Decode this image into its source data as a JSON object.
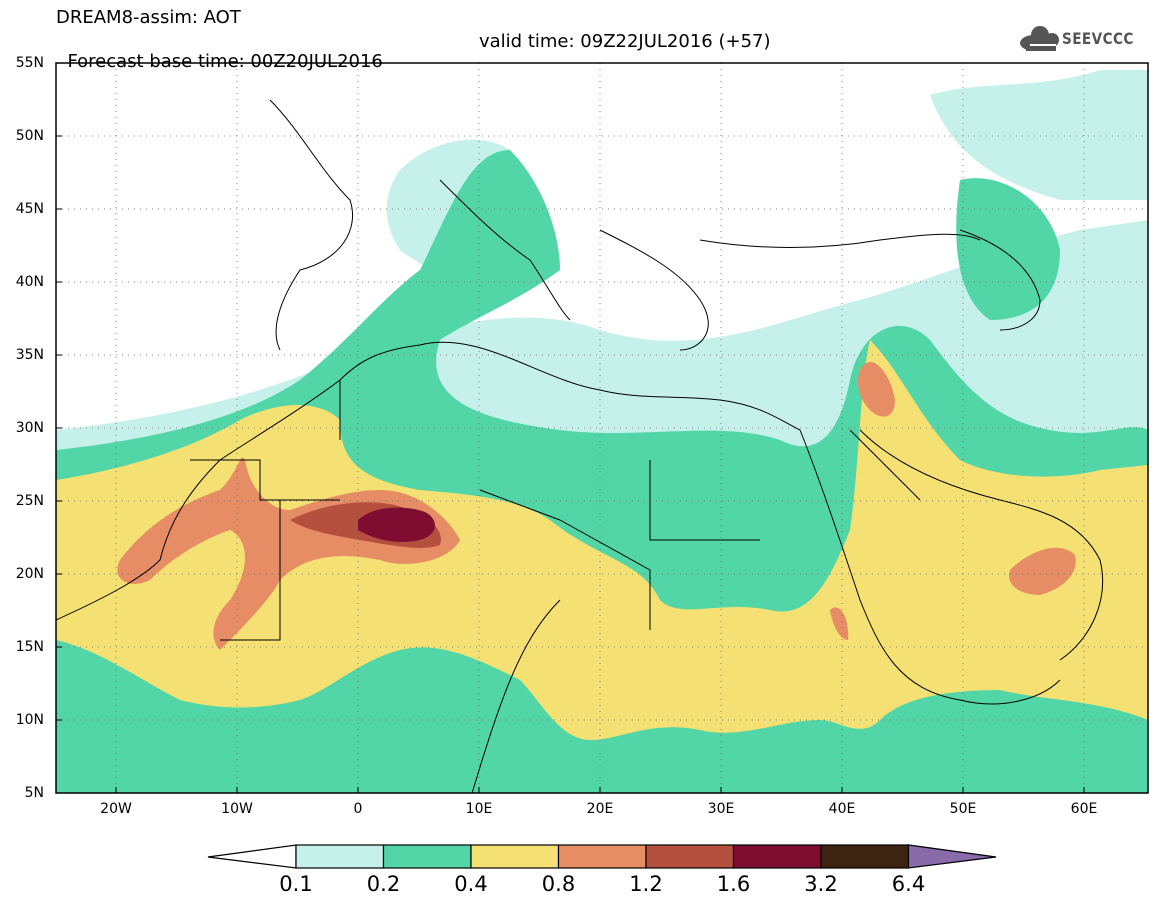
{
  "header": {
    "title_line1": "DREAM8-assim: AOT",
    "title_line2": "Forecast base time: 00Z20JUL2016",
    "valid_time": "valid time: 09Z22JUL2016 (+57)"
  },
  "logo": {
    "text": "SEEVCCC",
    "icon": "cloud-icon"
  },
  "map": {
    "lon_range": [
      -25,
      65
    ],
    "lat_range": [
      5,
      55
    ],
    "lat_labels": [
      "55N",
      "50N",
      "45N",
      "40N",
      "35N",
      "30N",
      "25N",
      "20N",
      "15N",
      "10N",
      "5N"
    ],
    "lon_labels": [
      "20W",
      "10W",
      "0",
      "10E",
      "20E",
      "30E",
      "40E",
      "50E",
      "60E"
    ]
  },
  "colorbar": {
    "labels": [
      "0.1",
      "0.2",
      "0.4",
      "0.8",
      "1.2",
      "1.6",
      "3.2",
      "6.4"
    ],
    "colors": [
      "#ffffff",
      "#c6f1eb",
      "#52d6a7",
      "#f5e173",
      "#e68d65",
      "#b5503f",
      "#7f0d32",
      "#3d2412",
      "#8a6aa8"
    ]
  },
  "fields": {
    "clear_color": "#ffffff",
    "light_color": "#c6f1eb",
    "green_color": "#52d6a7",
    "yellow_color": "#f5e173",
    "orange_color": "#e68d65",
    "brown_color": "#b5503f",
    "darkred_color": "#7f0d32"
  }
}
